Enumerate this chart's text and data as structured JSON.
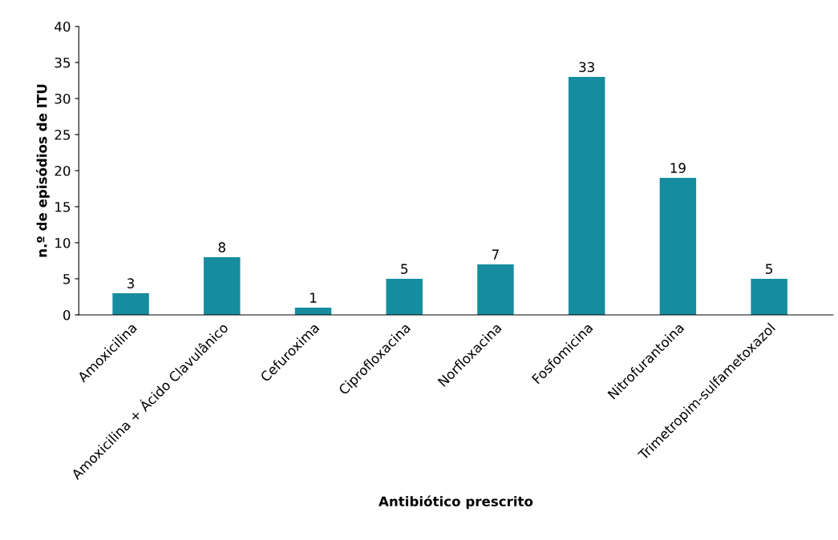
{
  "chart_data": {
    "type": "bar",
    "xlabel": "Antibiótico prescrito",
    "ylabel": "n.º de episódios de ITU",
    "categories": [
      "Amoxicilina",
      "Amoxicilina + Ácido Clavulânico",
      "Cefuroxima",
      "Ciprofloxacina",
      "Norfloxacina",
      "Fosfomicina",
      "Nitrofurantoina",
      "Trimetropim-sulfametoxazol"
    ],
    "values": [
      3,
      8,
      1,
      5,
      7,
      33,
      19,
      5
    ],
    "color": "#168d9e",
    "ylim": [
      0,
      40
    ],
    "yticks": [
      0,
      5,
      10,
      15,
      20,
      25,
      30,
      35,
      40
    ],
    "grid": false,
    "data_labels": true
  }
}
